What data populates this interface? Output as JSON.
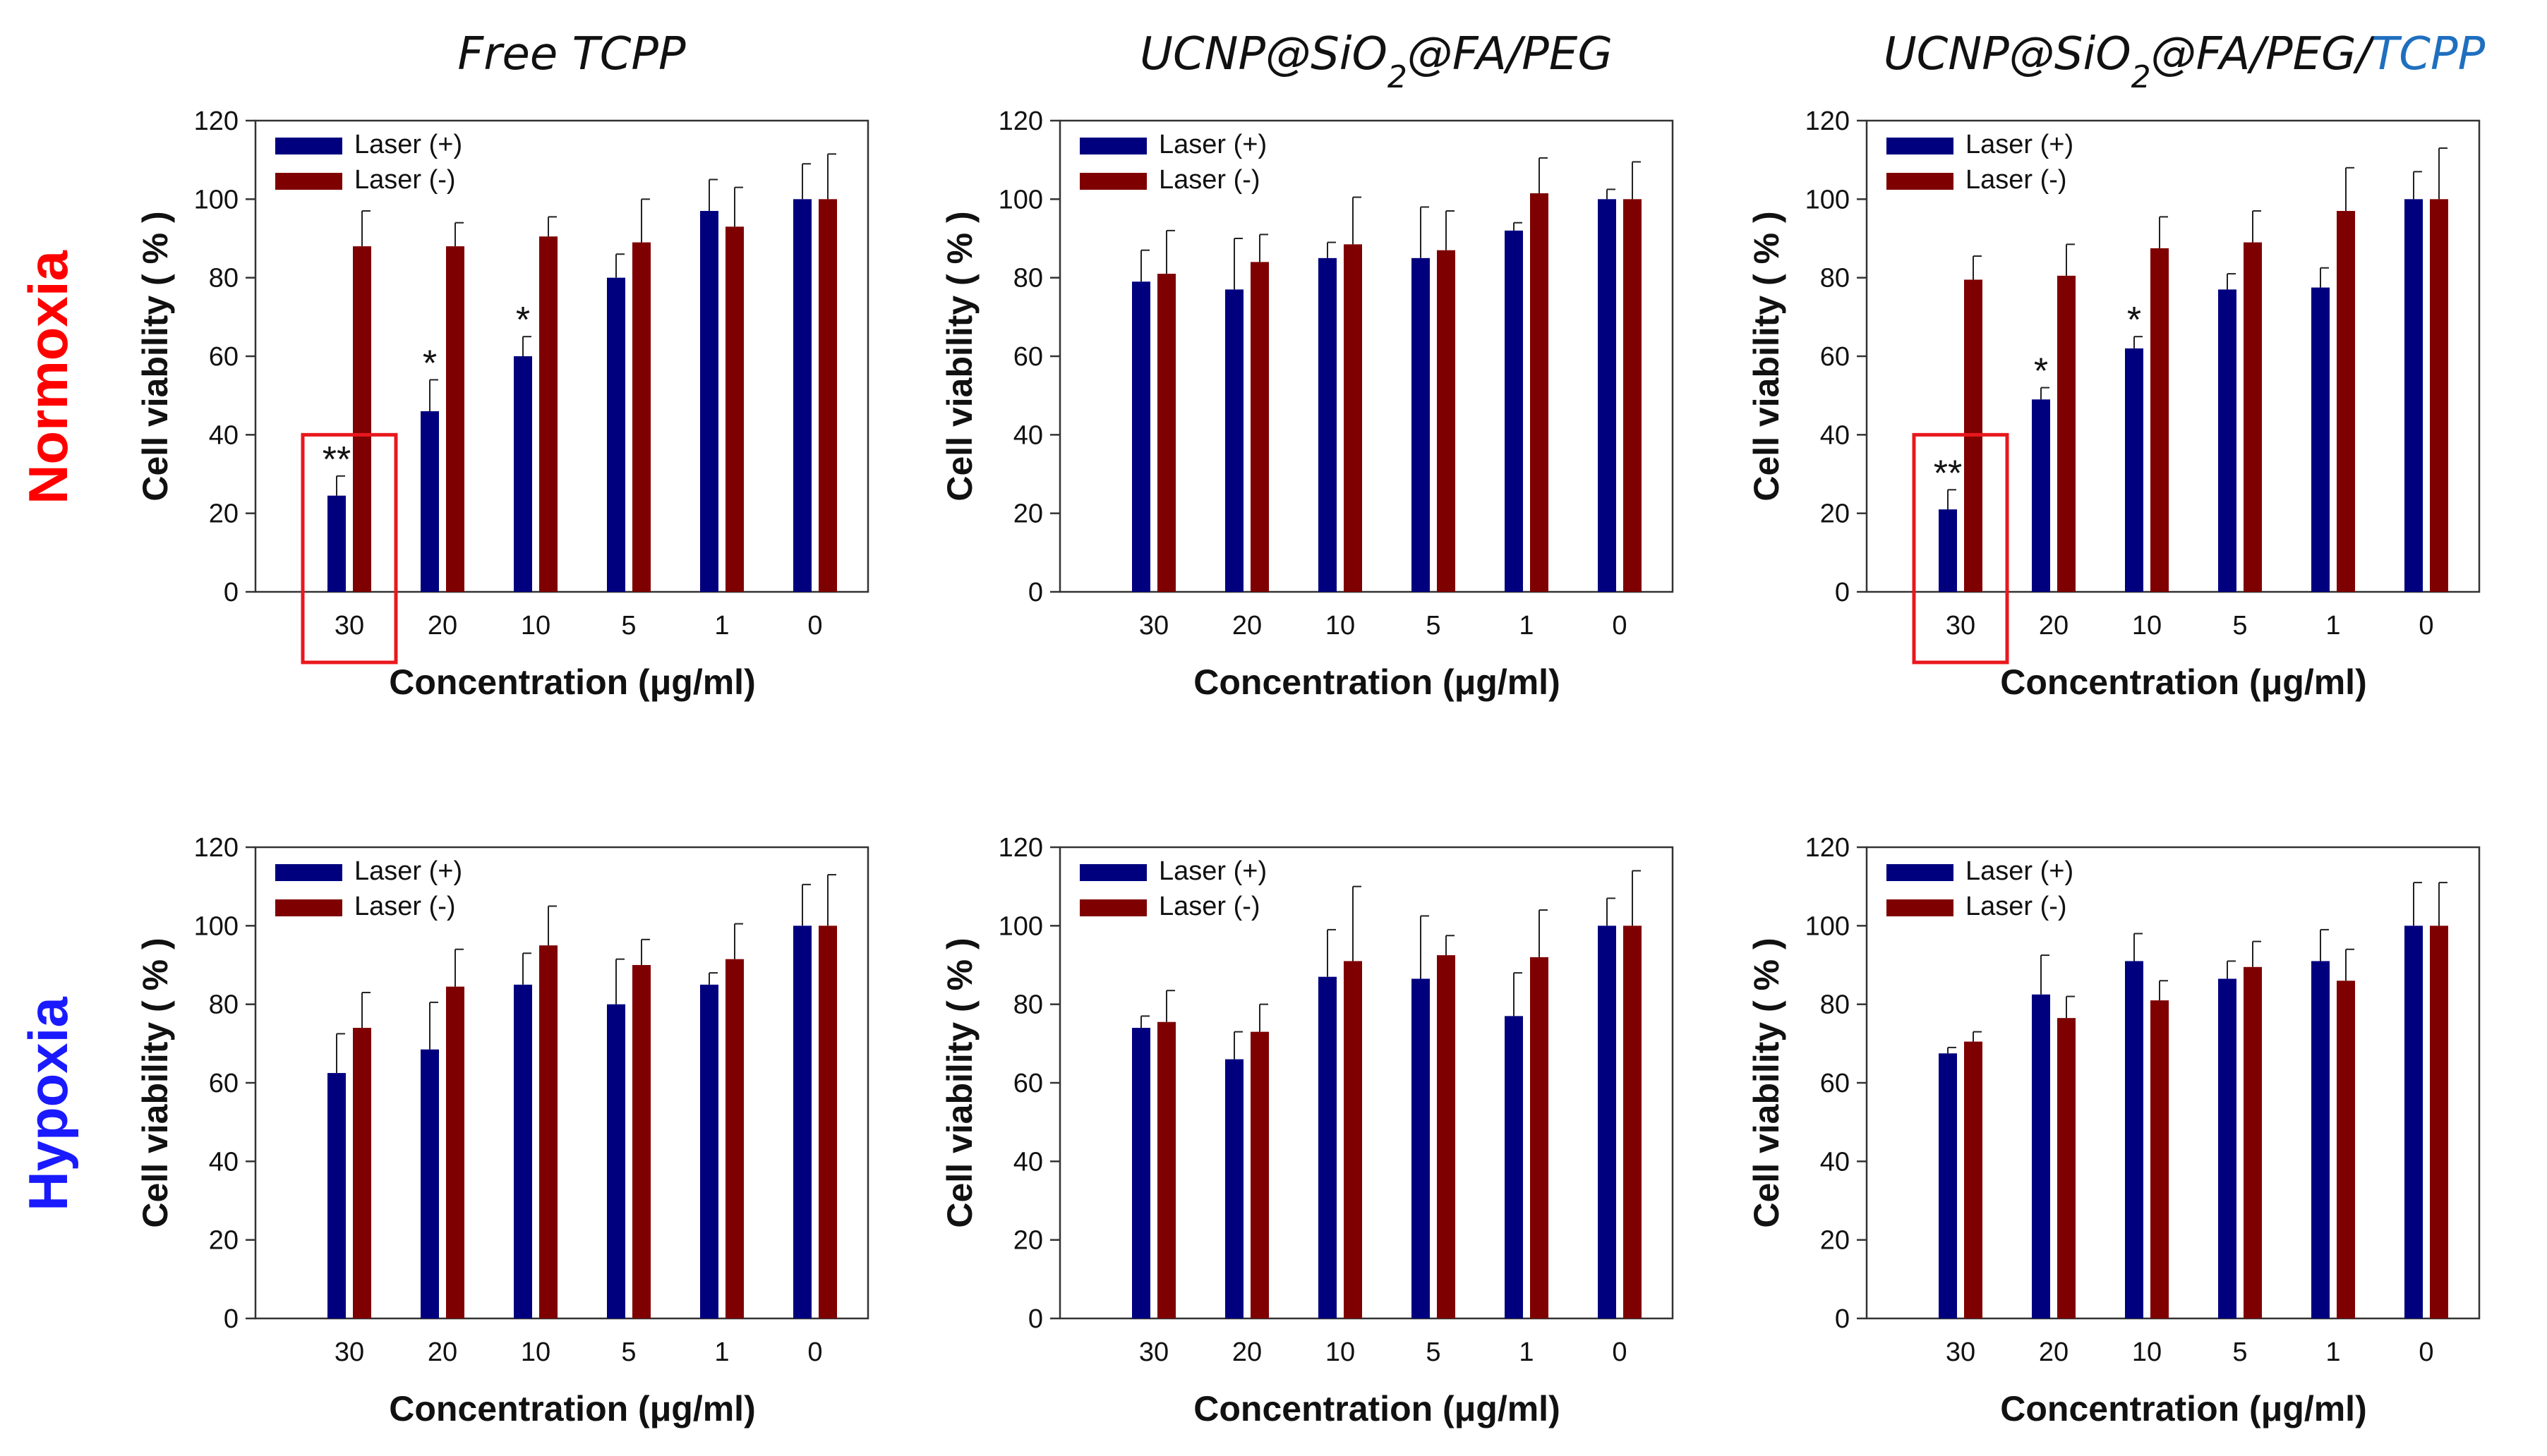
{
  "figure": {
    "column_titles": [
      {
        "parts": [
          {
            "text": "Free TCPP"
          }
        ]
      },
      {
        "parts": [
          {
            "text": "UCNP@SiO"
          },
          {
            "text": "2",
            "sub": true
          },
          {
            "text": "@FA/PEG"
          }
        ]
      },
      {
        "parts": [
          {
            "text": "UCNP@SiO"
          },
          {
            "text": "2",
            "sub": true
          },
          {
            "text": "@FA/PEG/"
          },
          {
            "text": "TCPP",
            "color": "#1f6fbf"
          }
        ]
      }
    ],
    "row_labels": [
      {
        "text": "Normoxia",
        "color": "#ff0000"
      },
      {
        "text": "Hypoxia",
        "color": "#1a1aff"
      }
    ]
  },
  "colors": {
    "laser_on": "#00007f",
    "laser_off": "#7f0000",
    "highlight_box": "#e8181d"
  },
  "chart_data": [
    {
      "type": "bar",
      "row": "Normoxia",
      "column": "Free TCPP",
      "categories": [
        "30",
        "20",
        "10",
        "5",
        "1",
        "0"
      ],
      "series": [
        {
          "name": "Laser (+)",
          "values": [
            24.5,
            46,
            60,
            80,
            97,
            100
          ],
          "errors": [
            5,
            8,
            5,
            6,
            8,
            9
          ]
        },
        {
          "name": "Laser (-)",
          "values": [
            88,
            88,
            90.5,
            89,
            93,
            100
          ],
          "errors": [
            9,
            6,
            5,
            11,
            10,
            11.5
          ]
        }
      ],
      "significance": [
        {
          "category": "30",
          "label": "**"
        },
        {
          "category": "20",
          "label": "*"
        },
        {
          "category": "10",
          "label": "*"
        }
      ],
      "highlight": "30",
      "xlabel": "Concentration  (μg/ml)",
      "ylabel": "Cell viability ( % )",
      "ylim": [
        0,
        120
      ],
      "yticks": [
        "0",
        "20",
        "40",
        "60",
        "80",
        "100",
        "120"
      ],
      "legend": "top-left"
    },
    {
      "type": "bar",
      "row": "Normoxia",
      "column": "UCNP@SiO2@FA/PEG",
      "categories": [
        "30",
        "20",
        "10",
        "5",
        "1",
        "0"
      ],
      "series": [
        {
          "name": "Laser (+)",
          "values": [
            79,
            77,
            85,
            85,
            92,
            100
          ],
          "errors": [
            8,
            13,
            4,
            13,
            2,
            2.5
          ]
        },
        {
          "name": "Laser (-)",
          "values": [
            81,
            84,
            88.5,
            87,
            101.5,
            100
          ],
          "errors": [
            11,
            7,
            12,
            10,
            9,
            9.5
          ]
        }
      ],
      "significance": [],
      "highlight": null,
      "xlabel": "Concentration  (μg/ml)",
      "ylabel": "Cell viability ( % )",
      "ylim": [
        0,
        120
      ],
      "yticks": [
        "0",
        "20",
        "40",
        "60",
        "80",
        "100",
        "120"
      ],
      "legend": "top-left"
    },
    {
      "type": "bar",
      "row": "Normoxia",
      "column": "UCNP@SiO2@FA/PEG/TCPP",
      "categories": [
        "30",
        "20",
        "10",
        "5",
        "1",
        "0"
      ],
      "series": [
        {
          "name": "Laser (+)",
          "values": [
            21,
            49,
            62,
            77,
            77.5,
            100
          ],
          "errors": [
            5,
            3,
            3,
            4,
            5,
            7
          ]
        },
        {
          "name": "Laser (-)",
          "values": [
            79.5,
            80.5,
            87.5,
            89,
            97,
            100
          ],
          "errors": [
            6,
            8,
            8,
            8,
            11,
            13
          ]
        }
      ],
      "significance": [
        {
          "category": "30",
          "label": "**"
        },
        {
          "category": "20",
          "label": "*"
        },
        {
          "category": "10",
          "label": "*"
        }
      ],
      "highlight": "30",
      "xlabel": "Concentration  (μg/ml)",
      "ylabel": "Cell viability ( % )",
      "ylim": [
        0,
        120
      ],
      "yticks": [
        "0",
        "20",
        "40",
        "60",
        "80",
        "100",
        "120"
      ],
      "legend": "top-left"
    },
    {
      "type": "bar",
      "row": "Hypoxia",
      "column": "Free TCPP",
      "categories": [
        "30",
        "20",
        "10",
        "5",
        "1",
        "0"
      ],
      "series": [
        {
          "name": "Laser (+)",
          "values": [
            62.5,
            68.5,
            85,
            80,
            85,
            100
          ],
          "errors": [
            10,
            12,
            8,
            11.5,
            3,
            10.5
          ]
        },
        {
          "name": "Laser (-)",
          "values": [
            74,
            84.5,
            95,
            90,
            91.5,
            100
          ],
          "errors": [
            9,
            9.5,
            10,
            6.5,
            9,
            13
          ]
        }
      ],
      "significance": [],
      "highlight": null,
      "xlabel": "Concentration  (μg/ml)",
      "ylabel": "Cell viability ( % )",
      "ylim": [
        0,
        120
      ],
      "yticks": [
        "0",
        "20",
        "40",
        "60",
        "80",
        "100",
        "120"
      ],
      "legend": "top-left"
    },
    {
      "type": "bar",
      "row": "Hypoxia",
      "column": "UCNP@SiO2@FA/PEG",
      "categories": [
        "30",
        "20",
        "10",
        "5",
        "1",
        "0"
      ],
      "series": [
        {
          "name": "Laser (+)",
          "values": [
            74,
            66,
            87,
            86.5,
            77,
            100
          ],
          "errors": [
            3,
            7,
            12,
            16,
            11,
            7
          ]
        },
        {
          "name": "Laser (-)",
          "values": [
            75.5,
            73,
            91,
            92.5,
            92,
            100
          ],
          "errors": [
            8,
            7,
            19,
            5,
            12,
            14
          ]
        }
      ],
      "significance": [],
      "highlight": null,
      "xlabel": "Concentration  (μg/ml)",
      "ylabel": "Cell viability ( % )",
      "ylim": [
        0,
        120
      ],
      "yticks": [
        "0",
        "20",
        "40",
        "60",
        "80",
        "100",
        "120"
      ],
      "legend": "top-left"
    },
    {
      "type": "bar",
      "row": "Hypoxia",
      "column": "UCNP@SiO2@FA/PEG/TCPP",
      "categories": [
        "30",
        "20",
        "10",
        "5",
        "1",
        "0"
      ],
      "series": [
        {
          "name": "Laser (+)",
          "values": [
            67.5,
            82.5,
            91,
            86.5,
            91,
            100
          ],
          "errors": [
            1.5,
            10,
            7,
            4.5,
            8,
            11
          ]
        },
        {
          "name": "Laser (-)",
          "values": [
            70.5,
            76.5,
            81,
            89.5,
            86,
            100
          ],
          "errors": [
            2.5,
            5.5,
            5,
            6.5,
            8,
            11
          ]
        }
      ],
      "significance": [],
      "highlight": null,
      "xlabel": "Concentration  (μg/ml)",
      "ylabel": "Cell viability ( % )",
      "ylim": [
        0,
        120
      ],
      "yticks": [
        "0",
        "20",
        "40",
        "60",
        "80",
        "100",
        "120"
      ],
      "legend": "top-left"
    }
  ]
}
